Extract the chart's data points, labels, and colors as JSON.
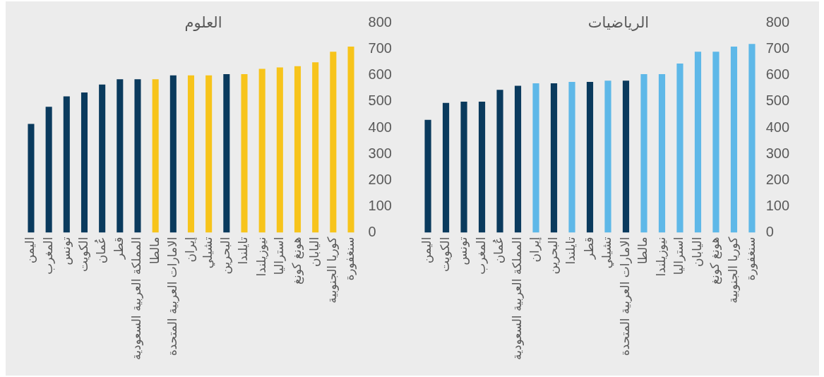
{
  "chart_data": [
    {
      "type": "bar",
      "title": "العلوم",
      "categories": [
        "اليمن",
        "المغرب",
        "تونس",
        "الكويت",
        "عُمان",
        "قطر",
        "المملكة العربية السعودية",
        "مالطا",
        "الامارات العربية المتحدة",
        "إيران",
        "تشيلي",
        "البحرين",
        "تايلندا",
        "نيوزيلندا",
        "استراليا",
        "هونغ كونغ",
        "اليابان",
        "كوريا الجنوبية",
        "سنغفورة"
      ],
      "values": [
        415,
        480,
        520,
        535,
        565,
        585,
        585,
        585,
        600,
        600,
        600,
        605,
        605,
        625,
        630,
        635,
        650,
        690,
        710
      ],
      "colors": [
        "#0a3a5d",
        "#0a3a5d",
        "#0a3a5d",
        "#0a3a5d",
        "#0a3a5d",
        "#0a3a5d",
        "#0a3a5d",
        "#f7c41b",
        "#0a3a5d",
        "#f7c41b",
        "#f7c41b",
        "#0a3a5d",
        "#f7c41b",
        "#f7c41b",
        "#f7c41b",
        "#f7c41b",
        "#f7c41b",
        "#f7c41b",
        "#f7c41b"
      ],
      "ylim": [
        0,
        800
      ],
      "yticks": [
        0,
        100,
        200,
        300,
        400,
        500,
        600,
        700,
        800
      ]
    },
    {
      "type": "bar",
      "title": "الرياضيات",
      "categories": [
        "اليمن",
        "الكويت",
        "تونس",
        "المغرب",
        "عُمان",
        "المملكة العربية السعودية",
        "إيران",
        "البحرين",
        "تايلندا",
        "قطر",
        "تشيلي",
        "الامارات العربية المتحدة",
        "مالطا",
        "نيوزيلندا",
        "استراليا",
        "اليابان",
        "هونغ كونغ",
        "كوريا الجنوبية",
        "سنغفورة"
      ],
      "values": [
        430,
        495,
        500,
        500,
        545,
        560,
        570,
        570,
        575,
        575,
        580,
        580,
        605,
        605,
        645,
        690,
        690,
        710,
        720
      ],
      "colors": [
        "#0a3a5d",
        "#0a3a5d",
        "#0a3a5d",
        "#0a3a5d",
        "#0a3a5d",
        "#0a3a5d",
        "#5eb8e8",
        "#0a3a5d",
        "#5eb8e8",
        "#0a3a5d",
        "#5eb8e8",
        "#0a3a5d",
        "#5eb8e8",
        "#5eb8e8",
        "#5eb8e8",
        "#5eb8e8",
        "#5eb8e8",
        "#5eb8e8",
        "#5eb8e8"
      ],
      "ylim": [
        0,
        800
      ],
      "yticks": [
        0,
        100,
        200,
        300,
        400,
        500,
        600,
        700,
        800
      ]
    }
  ]
}
